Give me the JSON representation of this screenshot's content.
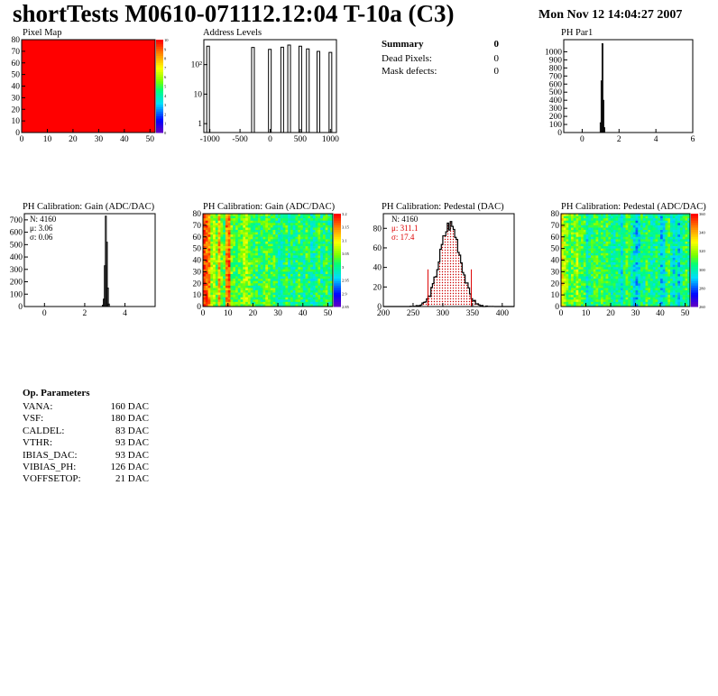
{
  "header": {
    "title": "shortTests M0610-071112.12:04 T-10a (C3)",
    "date": "Mon Nov 12 14:04:27 2007"
  },
  "summary": {
    "title": "Summary",
    "total": "0",
    "rows": [
      {
        "label": "Dead Pixels:",
        "value": "0"
      },
      {
        "label": "Mask defects:",
        "value": "0"
      }
    ]
  },
  "params": {
    "title": "Op. Parameters",
    "rows": [
      {
        "label": "VANA:",
        "value": "160 DAC"
      },
      {
        "label": "VSF:",
        "value": "180 DAC"
      },
      {
        "label": "CALDEL:",
        "value": "83 DAC"
      },
      {
        "label": "VTHR:",
        "value": "93 DAC"
      },
      {
        "label": "IBIAS_DAC:",
        "value": "93 DAC"
      },
      {
        "label": "VIBIAS_PH:",
        "value": "126 DAC"
      },
      {
        "label": "VOFFSETOP:",
        "value": "21 DAC"
      }
    ]
  },
  "chart_data": [
    {
      "id": "pixelmap",
      "type": "heatmap",
      "title": "Pixel Map",
      "xlim": [
        0,
        52
      ],
      "ylim": [
        0,
        80
      ],
      "xticks": [
        0,
        10,
        20,
        30,
        40,
        50
      ],
      "yticks": [
        0,
        10,
        20,
        30,
        40,
        50,
        60,
        70,
        80
      ],
      "fill_value": 10,
      "zlim": [
        0,
        10
      ],
      "colorbar_ticks": [
        "10",
        "9",
        "8",
        "7",
        "6",
        "5",
        "4",
        "3",
        "2",
        "1",
        "0"
      ]
    },
    {
      "id": "addr",
      "type": "bar",
      "title": "Address Levels",
      "xlim": [
        -1100,
        1100
      ],
      "ylog": true,
      "ylim": [
        0.5,
        700
      ],
      "xticks": [
        -1000,
        -500,
        0,
        500,
        1000
      ],
      "yticks": [
        {
          "v": 1,
          "label": "1"
        },
        {
          "v": 10,
          "label": "10"
        },
        {
          "v": 100,
          "label": "10²"
        }
      ],
      "peaks": [
        {
          "x": -1030,
          "y": 420
        },
        {
          "x": -285,
          "y": 380
        },
        {
          "x": -5,
          "y": 330
        },
        {
          "x": 200,
          "y": 390
        },
        {
          "x": 315,
          "y": 460
        },
        {
          "x": 500,
          "y": 420
        },
        {
          "x": 625,
          "y": 340
        },
        {
          "x": 800,
          "y": 280
        },
        {
          "x": 1000,
          "y": 260
        }
      ]
    },
    {
      "id": "phpar1",
      "type": "bar",
      "title": "PH Par1",
      "xlim": [
        -1,
        6
      ],
      "ylim": [
        0,
        1150
      ],
      "xticks": [
        0,
        2,
        4,
        6
      ],
      "yticks": [
        0,
        100,
        200,
        300,
        400,
        500,
        600,
        700,
        800,
        900,
        1000
      ],
      "bins": [
        {
          "x": 1.0,
          "y": 120
        },
        {
          "x": 1.05,
          "y": 640
        },
        {
          "x": 1.1,
          "y": 1100
        },
        {
          "x": 1.15,
          "y": 400
        },
        {
          "x": 1.2,
          "y": 60
        }
      ]
    },
    {
      "id": "gain1d",
      "type": "bar",
      "title": "PH Calibration: Gain (ADC/DAC)",
      "xlim": [
        -1,
        5.5
      ],
      "ylim": [
        0,
        750
      ],
      "xticks": [
        0,
        2,
        4
      ],
      "yticks": [
        0,
        100,
        200,
        300,
        400,
        500,
        600,
        700
      ],
      "stats": [
        "N: 4160",
        "μ: 3.06",
        "σ: 0.06"
      ],
      "bins": [
        {
          "x": 2.9,
          "y": 10
        },
        {
          "x": 2.95,
          "y": 60
        },
        {
          "x": 3.0,
          "y": 330
        },
        {
          "x": 3.05,
          "y": 730
        },
        {
          "x": 3.1,
          "y": 520
        },
        {
          "x": 3.15,
          "y": 150
        },
        {
          "x": 3.2,
          "y": 20
        }
      ]
    },
    {
      "id": "gainmap",
      "type": "heatmap",
      "title": "PH Calibration: Gain (ADC/DAC)",
      "xlim": [
        0,
        52
      ],
      "ylim": [
        0,
        80
      ],
      "xticks": [
        0,
        10,
        20,
        30,
        40,
        50
      ],
      "yticks": [
        0,
        10,
        20,
        30,
        40,
        50,
        60,
        70,
        80
      ],
      "colorbar_ticks": [
        "3.2",
        "3.15",
        "3.1",
        "3.05",
        "3",
        "2.95",
        "2.9",
        "2.85"
      ],
      "column_levels": [
        0.95,
        0.9,
        0.85,
        0.6,
        0.6,
        0.55,
        0.8,
        0.55,
        0.5,
        0.85,
        0.9,
        0.55,
        0.5,
        0.5,
        0.5,
        0.55,
        0.6,
        0.6,
        0.55,
        0.5,
        0.45,
        0.5,
        0.45,
        0.45,
        0.5,
        0.55,
        0.5,
        0.5,
        0.5,
        0.45,
        0.4,
        0.4,
        0.45,
        0.5,
        0.4,
        0.45,
        0.4,
        0.45,
        0.5,
        0.45,
        0.4,
        0.5,
        0.45,
        0.4,
        0.4,
        0.45,
        0.5,
        0.4,
        0.45,
        0.5,
        0.4,
        0.45
      ]
    },
    {
      "id": "ped1d",
      "type": "bar",
      "title": "PH Calibration: Pedestal (DAC)",
      "xlim": [
        200,
        420
      ],
      "ylim": [
        0,
        95
      ],
      "xticks": [
        200,
        250,
        300,
        350,
        400
      ],
      "yticks": [
        0,
        20,
        40,
        60,
        80
      ],
      "stats": [
        "N: 4160",
        "μ: 311.1",
        "σ: 17.4"
      ],
      "mean": 311.1,
      "sigma": 17.4,
      "peak": 84,
      "fit_markers": [
        {
          "x": 275,
          "y": 38
        },
        {
          "x": 348,
          "y": 38
        }
      ]
    },
    {
      "id": "pedmap",
      "type": "heatmap",
      "title": "PH Calibration: Pedestal (ADC/DAC)",
      "xlim": [
        0,
        52
      ],
      "ylim": [
        0,
        80
      ],
      "xticks": [
        0,
        10,
        20,
        30,
        40,
        50
      ],
      "yticks": [
        0,
        10,
        20,
        30,
        40,
        50,
        60,
        70,
        80
      ],
      "colorbar_ticks": [
        "360",
        "340",
        "320",
        "300",
        "280",
        "260"
      ],
      "column_levels": [
        0.7,
        0.6,
        0.55,
        0.5,
        0.55,
        0.5,
        0.6,
        0.5,
        0.5,
        0.5,
        0.35,
        0.4,
        0.45,
        0.5,
        0.5,
        0.45,
        0.5,
        0.45,
        0.5,
        0.45,
        0.4,
        0.4,
        0.45,
        0.4,
        0.35,
        0.45,
        0.5,
        0.45,
        0.4,
        0.35,
        0.3,
        0.35,
        0.45,
        0.4,
        0.5,
        0.45,
        0.4,
        0.4,
        0.45,
        0.4,
        0.3,
        0.35,
        0.45,
        0.5,
        0.4,
        0.35,
        0.4,
        0.3,
        0.4,
        0.45,
        0.5,
        0.4
      ]
    }
  ]
}
